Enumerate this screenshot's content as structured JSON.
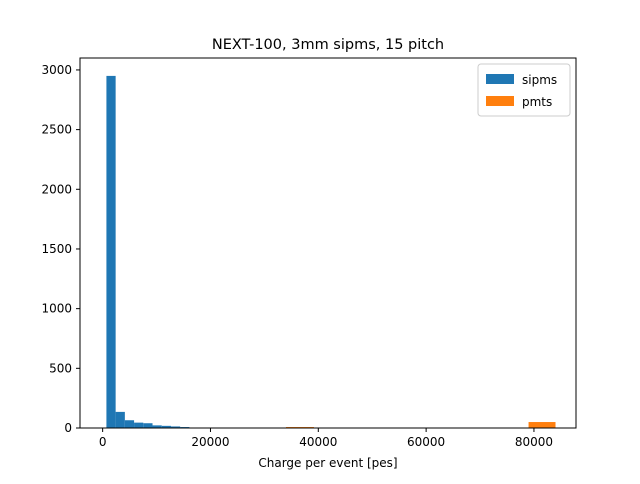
{
  "chart_data": {
    "type": "bar",
    "title": "NEXT-100, 3mm sipms, 15 pitch",
    "xlabel": "Charge per event [pes]",
    "ylabel": "",
    "xlim": [
      -4200,
      87800
    ],
    "ylim": [
      0,
      3100
    ],
    "xticks": [
      0,
      20000,
      40000,
      60000,
      80000
    ],
    "xtick_labels": [
      "0",
      "20000",
      "40000",
      "60000",
      "80000"
    ],
    "yticks": [
      0,
      500,
      1000,
      1500,
      2000,
      2500,
      3000
    ],
    "ytick_labels": [
      "0",
      "500",
      "1000",
      "1500",
      "2000",
      "2500",
      "3000"
    ],
    "grid": false,
    "legend_position": "top-right",
    "series": [
      {
        "name": "sipms",
        "color": "#1f77b4",
        "bin_edges": [
          700,
          2410,
          4120,
          5830,
          7540,
          9250,
          10960,
          12670,
          14380,
          16090
        ],
        "values": [
          2950,
          135,
          65,
          45,
          40,
          22,
          18,
          13,
          8
        ]
      },
      {
        "name": "pmts",
        "color": "#ff7f0e",
        "bin_edges": [
          34000,
          39200,
          79000,
          84000
        ],
        "values": [
          8,
          0,
          50
        ]
      }
    ]
  }
}
